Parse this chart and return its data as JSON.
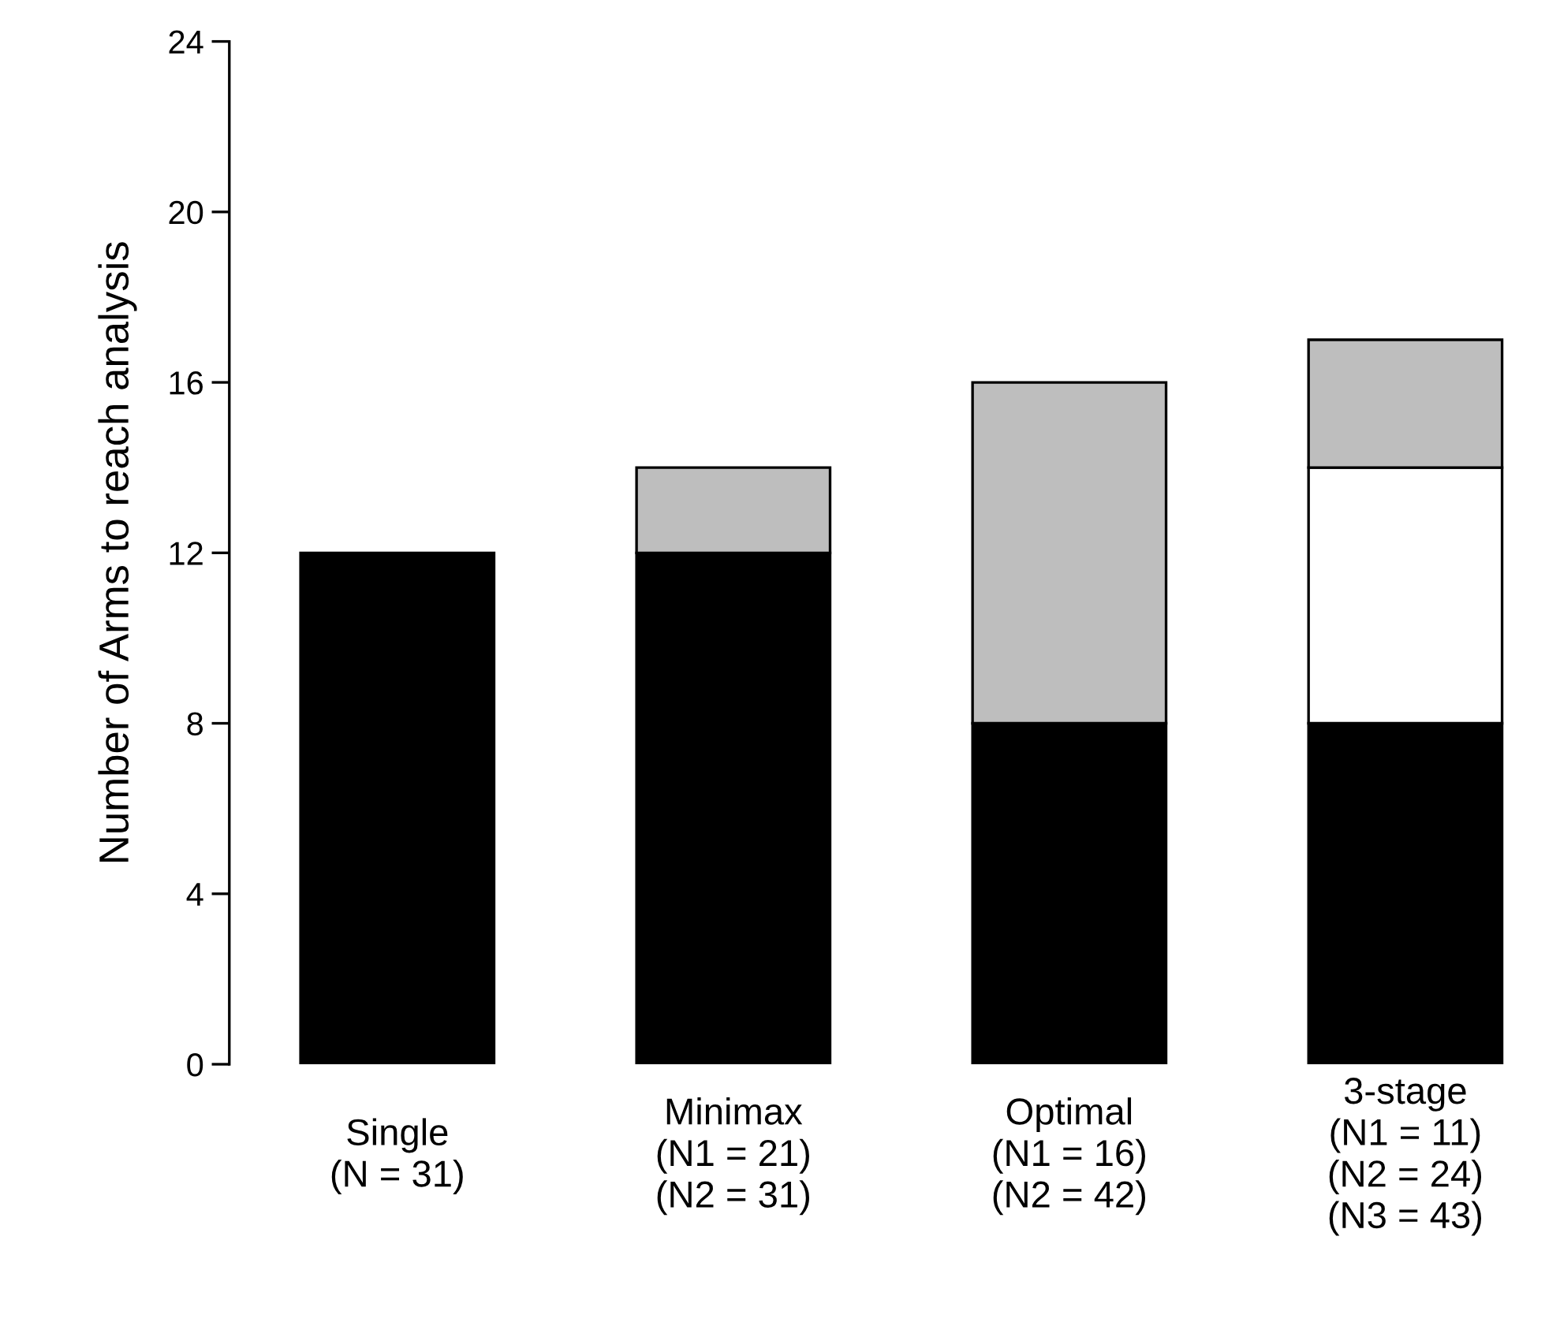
{
  "chart_data": {
    "type": "bar",
    "stacked": true,
    "ylabel": "Number of Arms to reach analysis",
    "categories": [
      "Single\n(N = 31)",
      "Minimax\n(N1 = 21)\n(N2 = 31)",
      "Optimal\n(N1 = 16)\n(N2 = 42)",
      "3-stage\n(N1 = 11)\n(N2 = 24)\n(N3 = 43)"
    ],
    "series": [
      {
        "color": "#000000",
        "values": [
          12,
          12,
          8,
          8
        ]
      },
      {
        "color": "#ffffff",
        "values": [
          null,
          null,
          null,
          6
        ]
      },
      {
        "color": "#bebebe",
        "values": [
          null,
          2,
          8,
          3
        ]
      }
    ],
    "ylim": [
      0,
      24
    ],
    "yticks": [
      0,
      4,
      8,
      12,
      16,
      20,
      24
    ],
    "grid": false,
    "legend": false
  }
}
